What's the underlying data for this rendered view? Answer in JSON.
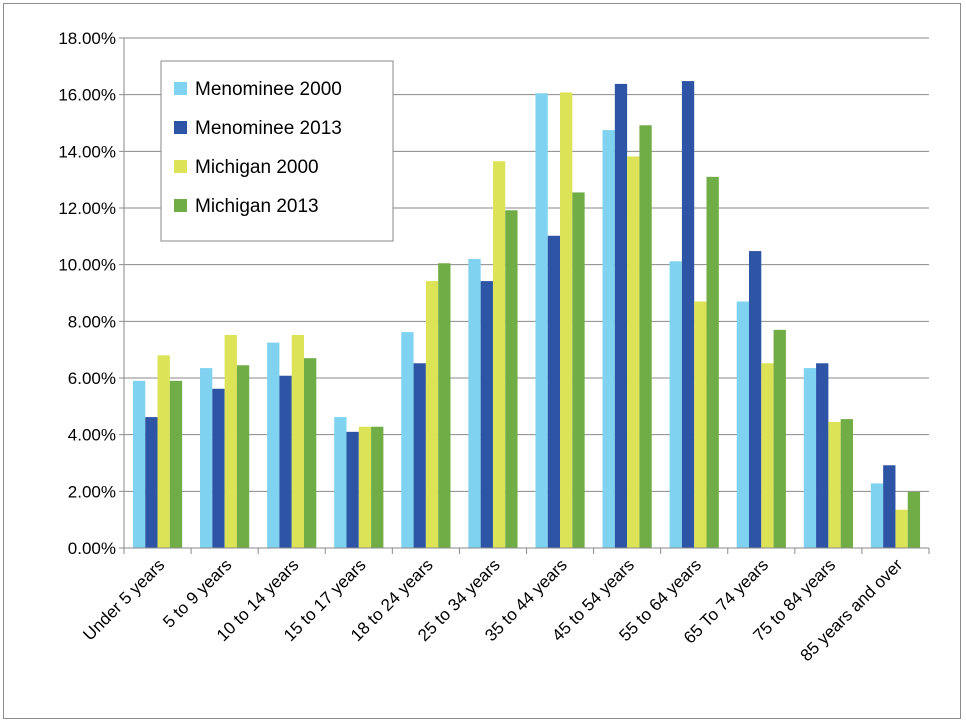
{
  "chart_data": {
    "type": "bar",
    "title": "",
    "xlabel": "",
    "ylabel": "",
    "ylim": [
      0,
      0.18
    ],
    "y_tick_values": [
      0,
      0.02,
      0.04,
      0.06,
      0.08,
      0.1,
      0.12,
      0.14,
      0.16,
      0.18
    ],
    "y_tick_labels": [
      "0.00%",
      "2.00%",
      "4.00%",
      "6.00%",
      "8.00%",
      "10.00%",
      "12.00%",
      "14.00%",
      "16.00%",
      "18.00%"
    ],
    "grid": true,
    "legend_position": "top-left",
    "categories": [
      "Under 5 years",
      "5 to 9 years",
      "10 to 14 years",
      "15 to 17 years",
      "18 to 24 years",
      "25 to 34 years",
      "35 to 44 years",
      "45 to 54 years",
      "55 to 64 years",
      "65 To 74 years",
      "75 to 84 years",
      "85 years and over"
    ],
    "series": [
      {
        "name": "Menominee 2000",
        "color": "#7FD3F0",
        "values": [
          0.059,
          0.0635,
          0.0725,
          0.0462,
          0.0762,
          0.102,
          0.1605,
          0.1475,
          0.1012,
          0.087,
          0.0635,
          0.0228
        ]
      },
      {
        "name": "Menominee 2013",
        "color": "#2E55A5",
        "values": [
          0.0462,
          0.0562,
          0.0608,
          0.041,
          0.0652,
          0.0942,
          0.1102,
          0.1638,
          0.1648,
          0.1048,
          0.0652,
          0.0292
        ]
      },
      {
        "name": "Michigan 2000",
        "color": "#DDE356",
        "values": [
          0.068,
          0.0752,
          0.0752,
          0.0428,
          0.0942,
          0.1365,
          0.1608,
          0.1382,
          0.087,
          0.0652,
          0.0445,
          0.0135
        ]
      },
      {
        "name": "Michigan 2013",
        "color": "#71AD47",
        "values": [
          0.059,
          0.0645,
          0.067,
          0.0428,
          0.1005,
          0.1192,
          0.1255,
          0.1492,
          0.131,
          0.077,
          0.0455,
          0.0198
        ]
      }
    ]
  }
}
